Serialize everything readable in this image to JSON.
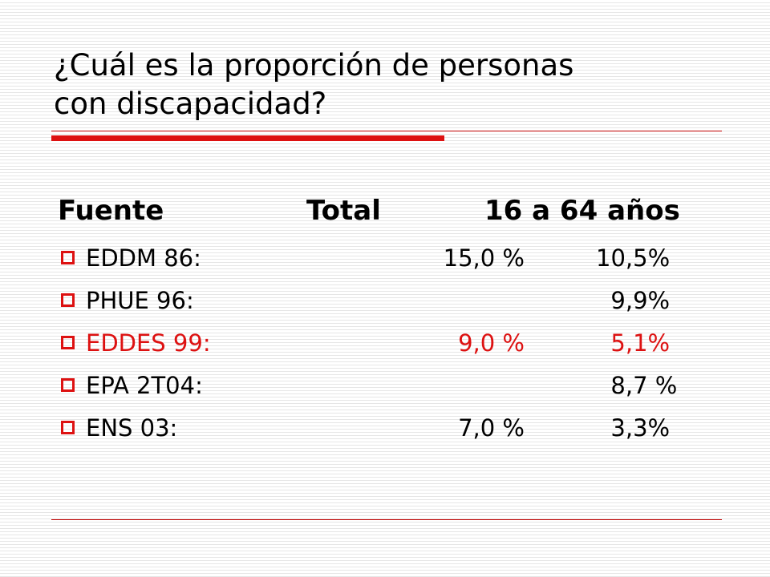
{
  "slide": {
    "title_line1": "¿Cuál es la proporción de personas",
    "title_line2": "con discapacidad?",
    "header": {
      "source": "Fuente",
      "total": "Total",
      "age_range": "16 a 64 años"
    },
    "rows": [
      {
        "label": "EDDM 86:",
        "total": "15,0 %",
        "age": "10,5%",
        "highlight": false
      },
      {
        "label": "PHUE 96:",
        "total": "",
        "age": "  9,9%",
        "highlight": false
      },
      {
        "label": "EDDES 99:",
        "total": "9,0 %",
        "age": "  5,1%",
        "highlight": true
      },
      {
        "label": "EPA 2T04:",
        "total": "",
        "age": "  8,7 %",
        "highlight": false
      },
      {
        "label": "ENS 03:",
        "total": "7,0 %",
        "age": "  3,3%",
        "highlight": false
      }
    ]
  },
  "colors": {
    "accent": "#dd1111",
    "text": "#000000",
    "background": "#ffffff"
  },
  "icons": {
    "bullet": "square-outline-icon"
  }
}
